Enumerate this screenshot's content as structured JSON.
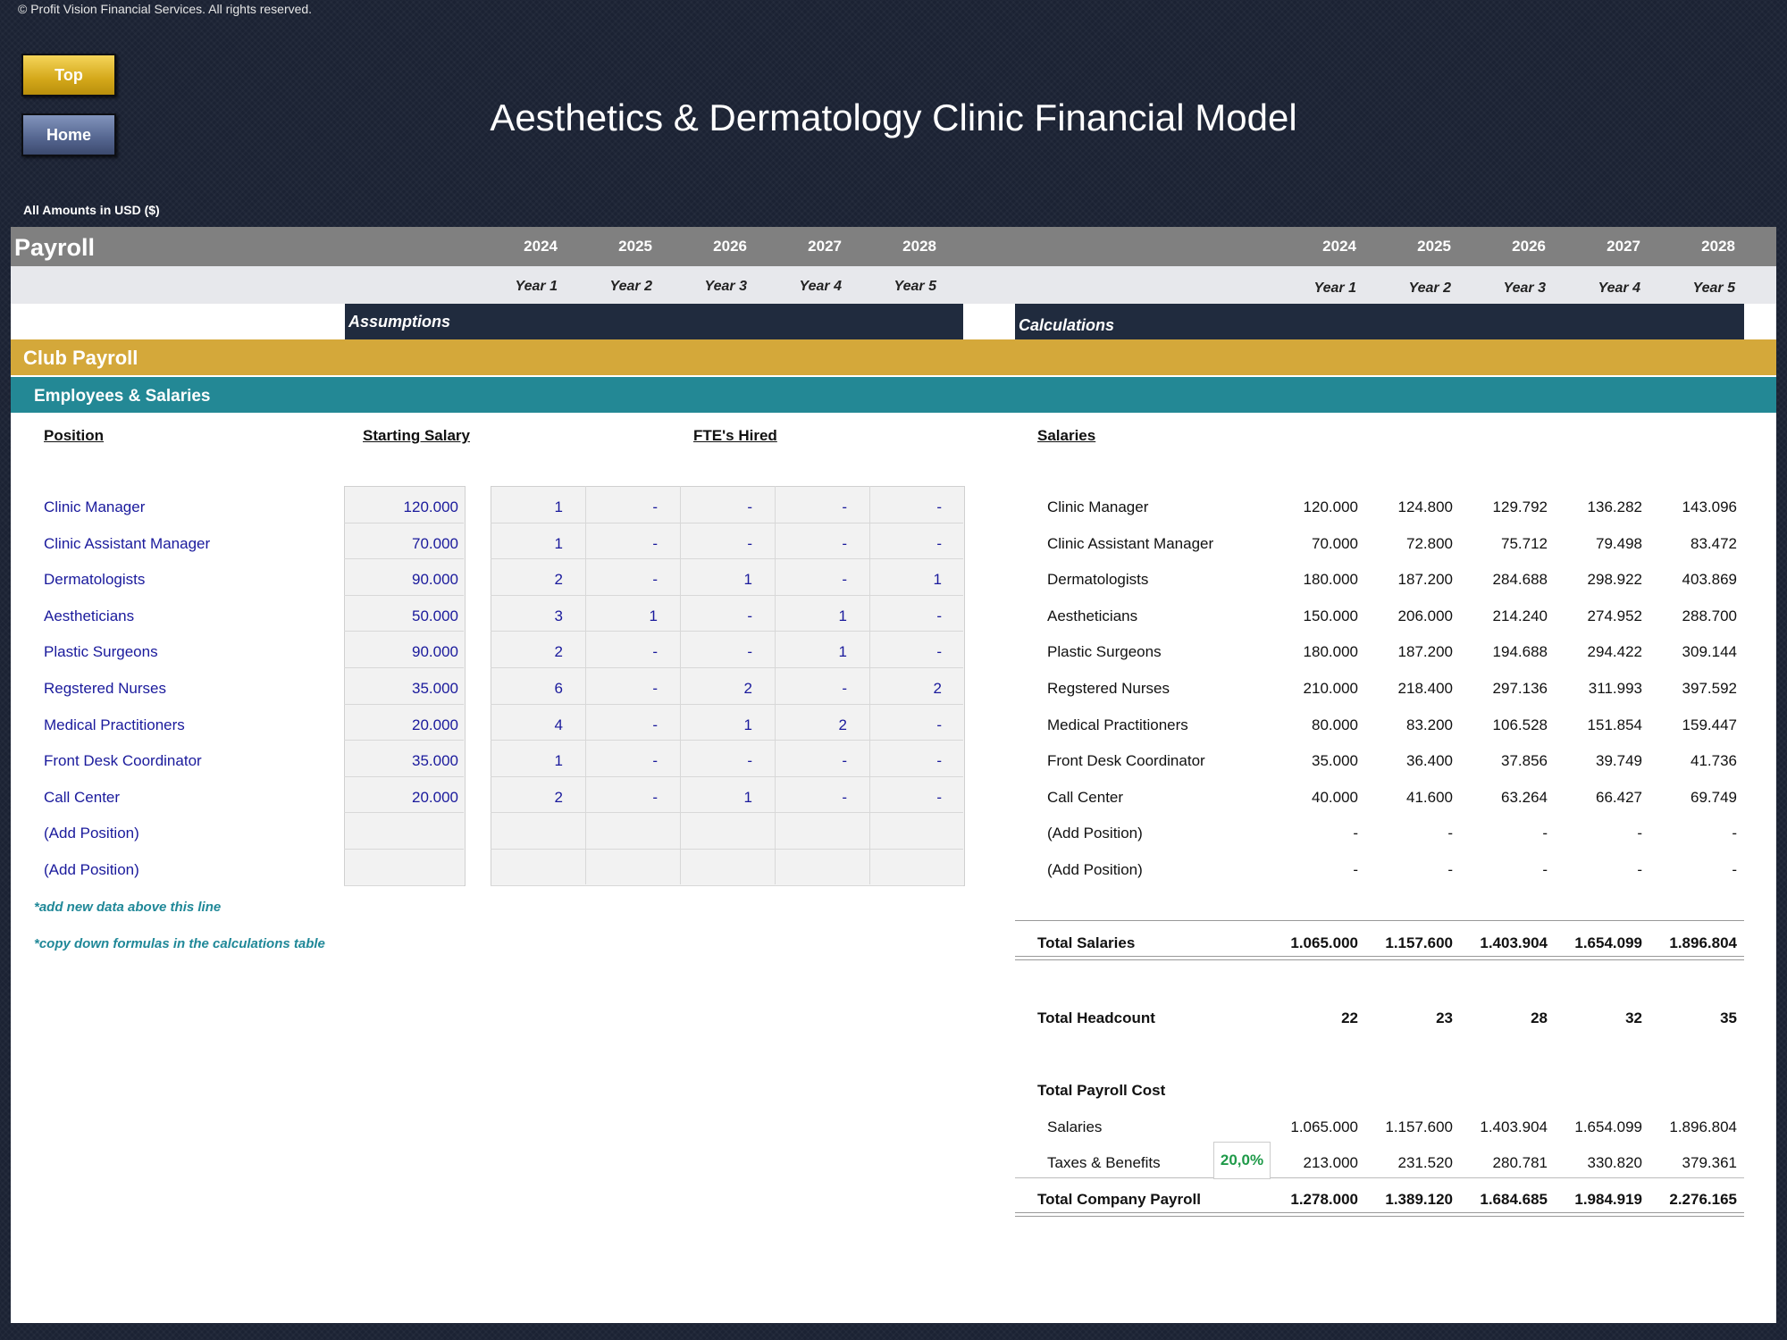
{
  "copyright": "© Profit Vision Financial Services. All rights reserved.",
  "nav": {
    "top_label": "Top",
    "home_label": "Home"
  },
  "title": "Aesthetics & Dermatology Clinic Financial Model",
  "amounts_note": "All Amounts in  USD ($)",
  "sheet_label": "Payroll",
  "years": [
    "2024",
    "2025",
    "2026",
    "2027",
    "2028"
  ],
  "year_labels": [
    "Year 1",
    "Year 2",
    "Year 3",
    "Year 4",
    "Year 5"
  ],
  "assumptions_header": "Assumptions",
  "calculations_header": "Calculations",
  "section_title": "Club Payroll",
  "subsection_title": "Employees & Salaries",
  "column_headers": {
    "position": "Position",
    "starting_salary": "Starting Salary",
    "ftes_hired": "FTE's Hired",
    "salaries": "Salaries"
  },
  "positions": [
    {
      "name": "Clinic Manager",
      "salary": "120.000",
      "ftes": [
        "1",
        "-",
        "-",
        "-",
        "-"
      ],
      "salaries": [
        "120.000",
        "124.800",
        "129.792",
        "136.282",
        "143.096"
      ]
    },
    {
      "name": "Clinic Assistant Manager",
      "salary": "70.000",
      "ftes": [
        "1",
        "-",
        "-",
        "-",
        "-"
      ],
      "salaries": [
        "70.000",
        "72.800",
        "75.712",
        "79.498",
        "83.472"
      ]
    },
    {
      "name": "Dermatologists",
      "salary": "90.000",
      "ftes": [
        "2",
        "-",
        "1",
        "-",
        "1"
      ],
      "salaries": [
        "180.000",
        "187.200",
        "284.688",
        "298.922",
        "403.869"
      ]
    },
    {
      "name": "Aestheticians",
      "salary": "50.000",
      "ftes": [
        "3",
        "1",
        "-",
        "1",
        "-"
      ],
      "salaries": [
        "150.000",
        "206.000",
        "214.240",
        "274.952",
        "288.700"
      ]
    },
    {
      "name": "Plastic Surgeons",
      "salary": "90.000",
      "ftes": [
        "2",
        "-",
        "-",
        "1",
        "-"
      ],
      "salaries": [
        "180.000",
        "187.200",
        "194.688",
        "294.422",
        "309.144"
      ]
    },
    {
      "name": "Regstered Nurses",
      "salary": "35.000",
      "ftes": [
        "6",
        "-",
        "2",
        "-",
        "2"
      ],
      "salaries": [
        "210.000",
        "218.400",
        "297.136",
        "311.993",
        "397.592"
      ]
    },
    {
      "name": "Medical Practitioners",
      "salary": "20.000",
      "ftes": [
        "4",
        "-",
        "1",
        "2",
        "-"
      ],
      "salaries": [
        "80.000",
        "83.200",
        "106.528",
        "151.854",
        "159.447"
      ]
    },
    {
      "name": "Front Desk Coordinator",
      "salary": "35.000",
      "ftes": [
        "1",
        "-",
        "-",
        "-",
        "-"
      ],
      "salaries": [
        "35.000",
        "36.400",
        "37.856",
        "39.749",
        "41.736"
      ]
    },
    {
      "name": "Call Center",
      "salary": "20.000",
      "ftes": [
        "2",
        "-",
        "1",
        "-",
        "-"
      ],
      "salaries": [
        "40.000",
        "41.600",
        "63.264",
        "66.427",
        "69.749"
      ]
    },
    {
      "name": "(Add Position)",
      "salary": "",
      "ftes": [
        "",
        "",
        "",
        "",
        ""
      ],
      "salaries": [
        "-",
        "-",
        "-",
        "-",
        "-"
      ]
    },
    {
      "name": "(Add Position)",
      "salary": "",
      "ftes": [
        "",
        "",
        "",
        "",
        ""
      ],
      "salaries": [
        "-",
        "-",
        "-",
        "-",
        "-"
      ]
    }
  ],
  "notes": [
    "*add new data above this line",
    "*copy down formulas in the calculations table"
  ],
  "totals": {
    "total_salaries_label": "Total Salaries",
    "total_salaries": [
      "1.065.000",
      "1.157.600",
      "1.403.904",
      "1.654.099",
      "1.896.804"
    ],
    "total_headcount_label": "Total Headcount",
    "total_headcount": [
      "22",
      "23",
      "28",
      "32",
      "35"
    ],
    "total_payroll_cost_label": "Total Payroll Cost",
    "salaries_label": "Salaries",
    "salaries": [
      "1.065.000",
      "1.157.600",
      "1.403.904",
      "1.654.099",
      "1.896.804"
    ],
    "taxes_label": "Taxes & Benefits",
    "taxes_pct": "20,0%",
    "taxes": [
      "213.000",
      "231.520",
      "280.781",
      "330.820",
      "379.361"
    ],
    "company_payroll_label": "Total Company Payroll",
    "company_payroll": [
      "1.278.000",
      "1.389.120",
      "1.684.685",
      "1.984.919",
      "2.276.165"
    ]
  }
}
